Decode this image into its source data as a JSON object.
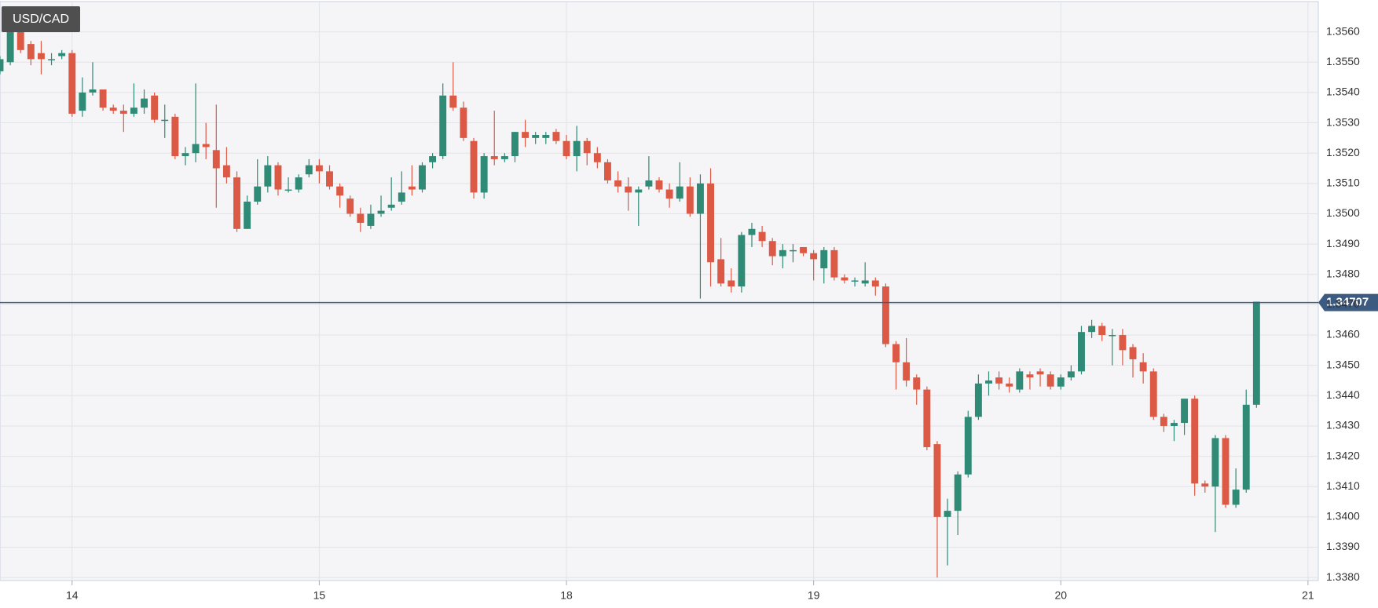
{
  "chart_data": {
    "type": "candlestick",
    "title": "USD/CAD",
    "up_color": "#2f8a76",
    "down_color": "#dc5a45",
    "grid": true,
    "xlim": [
      -7,
      121
    ],
    "ylim": [
      1.3379,
      1.357
    ],
    "xticks": [
      {
        "value": 0,
        "label": "14"
      },
      {
        "value": 24,
        "label": "15"
      },
      {
        "value": 48,
        "label": "18"
      },
      {
        "value": 72,
        "label": "19"
      },
      {
        "value": 96,
        "label": "20"
      },
      {
        "value": 120,
        "label": "21"
      }
    ],
    "yticks": [
      {
        "value": 1.338,
        "label": "1.3380"
      },
      {
        "value": 1.339,
        "label": "1.3390"
      },
      {
        "value": 1.34,
        "label": "1.3400"
      },
      {
        "value": 1.341,
        "label": "1.3410"
      },
      {
        "value": 1.342,
        "label": "1.3420"
      },
      {
        "value": 1.343,
        "label": "1.3430"
      },
      {
        "value": 1.344,
        "label": "1.3440"
      },
      {
        "value": 1.345,
        "label": "1.3450"
      },
      {
        "value": 1.346,
        "label": "1.3460"
      },
      {
        "value": 1.347,
        "label": "1.3470"
      },
      {
        "value": 1.348,
        "label": "1.3480"
      },
      {
        "value": 1.349,
        "label": "1.3490"
      },
      {
        "value": 1.35,
        "label": "1.3500"
      },
      {
        "value": 1.351,
        "label": "1.3510"
      },
      {
        "value": 1.352,
        "label": "1.3520"
      },
      {
        "value": 1.353,
        "label": "1.3530"
      },
      {
        "value": 1.354,
        "label": "1.3540"
      },
      {
        "value": 1.355,
        "label": "1.3550"
      },
      {
        "value": 1.356,
        "label": "1.3560"
      }
    ],
    "last_price": 1.34707,
    "last_price_color": "#3d5a80",
    "x": [
      -7,
      -6,
      -5,
      -4,
      -3,
      -2,
      -1,
      0,
      1,
      2,
      3,
      4,
      5,
      6,
      7,
      8,
      9,
      10,
      11,
      12,
      13,
      14,
      15,
      16,
      17,
      18,
      19,
      20,
      21,
      22,
      23,
      24,
      25,
      26,
      27,
      28,
      29,
      30,
      31,
      32,
      33,
      34,
      35,
      36,
      37,
      38,
      39,
      40,
      41,
      42,
      43,
      44,
      45,
      46,
      47,
      48,
      49,
      50,
      51,
      52,
      53,
      54,
      55,
      56,
      57,
      58,
      59,
      60,
      61,
      62,
      63,
      64,
      65,
      66,
      67,
      68,
      69,
      70,
      71,
      72,
      73,
      74,
      75,
      76,
      77,
      78,
      79,
      80,
      81,
      82,
      83,
      84,
      85,
      86,
      87,
      88,
      89,
      90,
      91,
      92,
      93,
      94,
      95,
      96,
      97,
      98,
      99,
      100,
      101,
      102,
      103,
      104,
      105,
      106,
      107,
      108,
      109,
      110,
      111,
      112,
      113,
      114,
      115
    ],
    "open": [
      1.3547,
      1.355,
      1.356,
      1.3556,
      1.3553,
      1.3551,
      1.3552,
      1.3553,
      1.3534,
      1.354,
      1.3541,
      1.3535,
      1.3534,
      1.3533,
      1.3535,
      1.3539,
      1.3531,
      1.3532,
      1.3519,
      1.352,
      1.3523,
      1.3521,
      1.3516,
      1.3512,
      1.3495,
      1.3504,
      1.3509,
      1.3516,
      1.3508,
      1.3508,
      1.3513,
      1.3516,
      1.3514,
      1.3509,
      1.3505,
      1.35,
      1.3496,
      1.35,
      1.3502,
      1.3504,
      1.3509,
      1.3508,
      1.3517,
      1.3519,
      1.3539,
      1.3535,
      1.3524,
      1.3507,
      1.3519,
      1.3518,
      1.3519,
      1.3527,
      1.3525,
      1.3525,
      1.3527,
      1.3524,
      1.3519,
      1.3524,
      1.352,
      1.3517,
      1.3511,
      1.3509,
      1.3507,
      1.3509,
      1.3511,
      1.3508,
      1.3505,
      1.3509,
      1.35,
      1.351,
      1.3485,
      1.3478,
      1.3476,
      1.3493,
      1.3494,
      1.3491,
      1.3486,
      1.3488,
      1.3489,
      1.3487,
      1.3482,
      1.3488,
      1.3479,
      1.3478,
      1.3477,
      1.3478,
      1.3476,
      1.3457,
      1.3451,
      1.3446,
      1.3442,
      1.3424,
      1.34,
      1.3402,
      1.3414,
      1.3433,
      1.3444,
      1.3446,
      1.3444,
      1.3442,
      1.3447,
      1.3448,
      1.3447,
      1.3443,
      1.3446,
      1.3448,
      1.3461,
      1.3463,
      1.346,
      1.346,
      1.3456,
      1.3451,
      1.3448,
      1.3433,
      1.343,
      1.3431,
      1.3439,
      1.3411,
      1.341,
      1.3426,
      1.3404,
      1.3409,
      1.3437
    ],
    "high": [
      1.3552,
      1.3565,
      1.3567,
      1.3557,
      1.3557,
      1.3553,
      1.3554,
      1.3554,
      1.3545,
      1.355,
      1.3541,
      1.3536,
      1.3536,
      1.3543,
      1.3541,
      1.354,
      1.3536,
      1.3533,
      1.3522,
      1.3543,
      1.353,
      1.3536,
      1.3522,
      1.3514,
      1.3506,
      1.3518,
      1.3519,
      1.3517,
      1.3512,
      1.3513,
      1.3518,
      1.3518,
      1.3516,
      1.351,
      1.3506,
      1.3502,
      1.3503,
      1.3506,
      1.3512,
      1.3514,
      1.3516,
      1.3517,
      1.352,
      1.3543,
      1.355,
      1.3537,
      1.3525,
      1.352,
      1.3534,
      1.352,
      1.3527,
      1.3531,
      1.3527,
      1.3527,
      1.3528,
      1.3526,
      1.3529,
      1.3525,
      1.3522,
      1.3518,
      1.3514,
      1.3512,
      1.3509,
      1.3519,
      1.3512,
      1.351,
      1.3517,
      1.3512,
      1.3513,
      1.3515,
      1.3492,
      1.3482,
      1.3494,
      1.3497,
      1.3496,
      1.3492,
      1.349,
      1.349,
      1.3489,
      1.3488,
      1.3489,
      1.3489,
      1.348,
      1.3479,
      1.3484,
      1.3479,
      1.3477,
      1.3458,
      1.3459,
      1.3447,
      1.3443,
      1.3425,
      1.3406,
      1.3415,
      1.3435,
      1.3447,
      1.3448,
      1.3448,
      1.3446,
      1.3449,
      1.3448,
      1.3449,
      1.3448,
      1.3447,
      1.345,
      1.3463,
      1.3465,
      1.3464,
      1.3462,
      1.3462,
      1.3457,
      1.3454,
      1.3449,
      1.3434,
      1.3432,
      1.3439,
      1.344,
      1.3412,
      1.3427,
      1.3427,
      1.3416,
      1.3442,
      1.3471
    ],
    "low": [
      1.3546,
      1.3549,
      1.3553,
      1.3549,
      1.3546,
      1.3549,
      1.3551,
      1.3532,
      1.3532,
      1.3539,
      1.3534,
      1.3533,
      1.3527,
      1.3532,
      1.3533,
      1.353,
      1.3525,
      1.3518,
      1.3516,
      1.3517,
      1.3518,
      1.3502,
      1.351,
      1.3494,
      1.3495,
      1.3503,
      1.3507,
      1.3506,
      1.3507,
      1.3507,
      1.3512,
      1.351,
      1.3508,
      1.3502,
      1.3499,
      1.3494,
      1.3495,
      1.3499,
      1.3501,
      1.3503,
      1.3506,
      1.3507,
      1.3515,
      1.3518,
      1.3534,
      1.3524,
      1.3505,
      1.3505,
      1.3516,
      1.3517,
      1.3517,
      1.3522,
      1.3523,
      1.3523,
      1.3523,
      1.3518,
      1.3514,
      1.3516,
      1.3515,
      1.351,
      1.3507,
      1.3501,
      1.3496,
      1.3508,
      1.3507,
      1.3502,
      1.3504,
      1.3499,
      1.3472,
      1.3476,
      1.3476,
      1.3474,
      1.3474,
      1.3489,
      1.3489,
      1.3483,
      1.3482,
      1.3484,
      1.3486,
      1.3478,
      1.3477,
      1.3478,
      1.3477,
      1.3476,
      1.3476,
      1.3473,
      1.3456,
      1.3442,
      1.3443,
      1.3437,
      1.3422,
      1.338,
      1.3384,
      1.3394,
      1.3413,
      1.3432,
      1.344,
      1.3442,
      1.3441,
      1.3441,
      1.3442,
      1.3443,
      1.3442,
      1.3442,
      1.3445,
      1.3447,
      1.3459,
      1.3458,
      1.345,
      1.345,
      1.3446,
      1.3444,
      1.3432,
      1.3428,
      1.3425,
      1.3427,
      1.3407,
      1.3408,
      1.3395,
      1.3403,
      1.3403,
      1.3408,
      1.3436
    ],
    "close": [
      1.3551,
      1.356,
      1.3554,
      1.3551,
      1.3551,
      1.3551,
      1.3553,
      1.3533,
      1.354,
      1.3541,
      1.3535,
      1.3534,
      1.3533,
      1.3535,
      1.3538,
      1.3531,
      1.3531,
      1.3519,
      1.352,
      1.3523,
      1.3522,
      1.3515,
      1.3512,
      1.3495,
      1.3504,
      1.3509,
      1.3516,
      1.3508,
      1.3508,
      1.3512,
      1.3516,
      1.3514,
      1.3509,
      1.3506,
      1.35,
      1.3497,
      1.35,
      1.3501,
      1.3503,
      1.3507,
      1.3508,
      1.3516,
      1.3519,
      1.3539,
      1.3535,
      1.3525,
      1.3507,
      1.3519,
      1.3518,
      1.3519,
      1.3527,
      1.3525,
      1.3526,
      1.3526,
      1.3524,
      1.3519,
      1.3524,
      1.352,
      1.3517,
      1.3511,
      1.3509,
      1.3507,
      1.3508,
      1.3511,
      1.3508,
      1.3505,
      1.3509,
      1.35,
      1.351,
      1.3484,
      1.3477,
      1.3476,
      1.3493,
      1.3495,
      1.3491,
      1.3486,
      1.3488,
      1.3488,
      1.3487,
      1.3485,
      1.3488,
      1.3479,
      1.3478,
      1.3478,
      1.3478,
      1.3476,
      1.3457,
      1.3451,
      1.3445,
      1.3442,
      1.3423,
      1.34,
      1.3402,
      1.3414,
      1.3433,
      1.3444,
      1.3445,
      1.3444,
      1.3443,
      1.3448,
      1.3446,
      1.3447,
      1.3443,
      1.3446,
      1.3448,
      1.3461,
      1.3463,
      1.346,
      1.346,
      1.3455,
      1.3452,
      1.3448,
      1.3433,
      1.343,
      1.3431,
      1.3439,
      1.3411,
      1.341,
      1.3426,
      1.3404,
      1.3409,
      1.3437,
      1.3471
    ]
  }
}
